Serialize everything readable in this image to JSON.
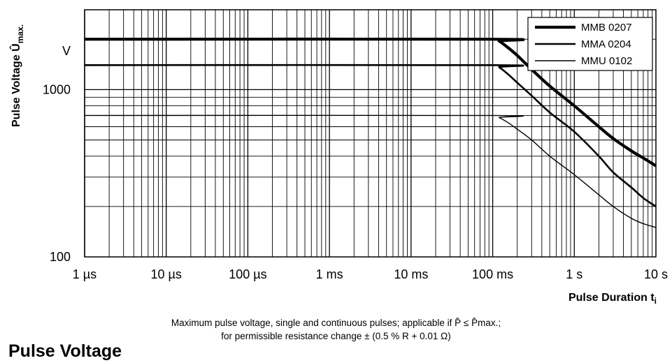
{
  "page_title": "Pulse Voltage",
  "caption_line1": "Maximum pulse voltage, single and continuous pulses; applicable if P̂ ≤ P̂max.;",
  "caption_line2": "for permissible resistance change ± (0.5 % R + 0.01 Ω)",
  "chart_data": {
    "type": "line",
    "ylabel_main": "Pulse Voltage Û",
    "ylabel_sub": "max.",
    "xlabel_main": "Pulse Duration t",
    "xlabel_sub": "i",
    "x_scale": "log",
    "y_scale": "log",
    "xlim_seconds": [
      1e-06,
      10
    ],
    "ylim_volts": [
      100,
      3000
    ],
    "grid": true,
    "legend_position": "top-right",
    "x_tick_values": [
      1e-06,
      1e-05,
      0.0001,
      0.001,
      0.01,
      0.1,
      1,
      10
    ],
    "x_tick_labels": [
      "1 µs",
      "10 µs",
      "100 µs",
      "1 ms",
      "10 ms",
      "100 ms",
      "1 s",
      "10 s"
    ],
    "y_tick_values": [
      100,
      1000
    ],
    "y_tick_labels": [
      "100",
      "1000"
    ],
    "y_unit_label": "V",
    "series": [
      {
        "name": "MMB 0207",
        "line_weight": "thick",
        "x": [
          1e-06,
          0.1,
          0.12,
          0.15,
          0.2,
          0.3,
          0.5,
          1,
          2,
          3,
          5,
          7,
          10
        ],
        "y": [
          2000,
          2000,
          1950,
          1800,
          1600,
          1320,
          1050,
          800,
          600,
          510,
          430,
          390,
          350
        ]
      },
      {
        "name": "MMA 0204",
        "line_weight": "medium",
        "x": [
          1e-06,
          0.1,
          0.12,
          0.15,
          0.2,
          0.3,
          0.5,
          1,
          2,
          3,
          5,
          7,
          10
        ],
        "y": [
          1400,
          1400,
          1360,
          1250,
          1100,
          920,
          730,
          560,
          400,
          320,
          260,
          225,
          200
        ]
      },
      {
        "name": "MMU 0102",
        "line_weight": "thin",
        "x": [
          1e-06,
          0.1,
          0.12,
          0.15,
          0.2,
          0.3,
          0.5,
          1,
          2,
          3,
          5,
          7,
          10
        ],
        "y": [
          700,
          700,
          680,
          640,
          580,
          500,
          400,
          310,
          235,
          200,
          170,
          158,
          150
        ]
      }
    ]
  }
}
